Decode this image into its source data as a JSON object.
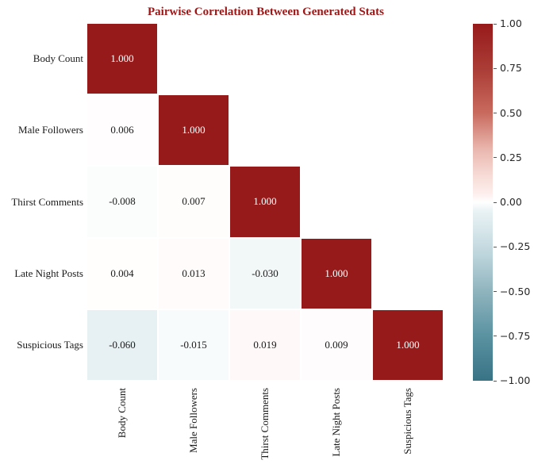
{
  "title": {
    "text": "Pairwise Correlation Between Generated Stats"
  },
  "chart_data": {
    "type": "heatmap",
    "title": "Pairwise Correlation Between Generated Stats",
    "categories": [
      "Body Count",
      "Male Followers",
      "Thirst Comments",
      "Late Night Posts",
      "Suspicious Tags"
    ],
    "matrix": [
      [
        1.0,
        null,
        null,
        null,
        null
      ],
      [
        0.006,
        1.0,
        null,
        null,
        null
      ],
      [
        -0.008,
        0.007,
        1.0,
        null,
        null
      ],
      [
        0.004,
        0.013,
        -0.03,
        1.0,
        null
      ],
      [
        -0.06,
        -0.015,
        0.019,
        0.009,
        1.0
      ]
    ],
    "mask": "upper-triangle",
    "value_format": "3-decimals",
    "annotated": true,
    "grid": false,
    "legend_position": "right-colorbar",
    "colorbar": {
      "min": -1.0,
      "max": 1.0,
      "tick_values": [
        1.0,
        0.75,
        0.5,
        0.25,
        0.0,
        -0.25,
        -0.5,
        -0.75,
        -1.0
      ],
      "tick_labels": [
        "1.00",
        "0.75",
        "0.50",
        "0.25",
        "0.00",
        "−0.25",
        "−0.50",
        "−0.75",
        "−1.00"
      ]
    },
    "colors": {
      "positive_max": "#971a1a",
      "midpoint": "#ffffff",
      "negative_max": "#387385",
      "title_text": "#9e1515",
      "label_text": "#1a1a1a",
      "annotation_on_dark": "#ffffff",
      "annotation_on_light": "#1a1a1a"
    }
  }
}
